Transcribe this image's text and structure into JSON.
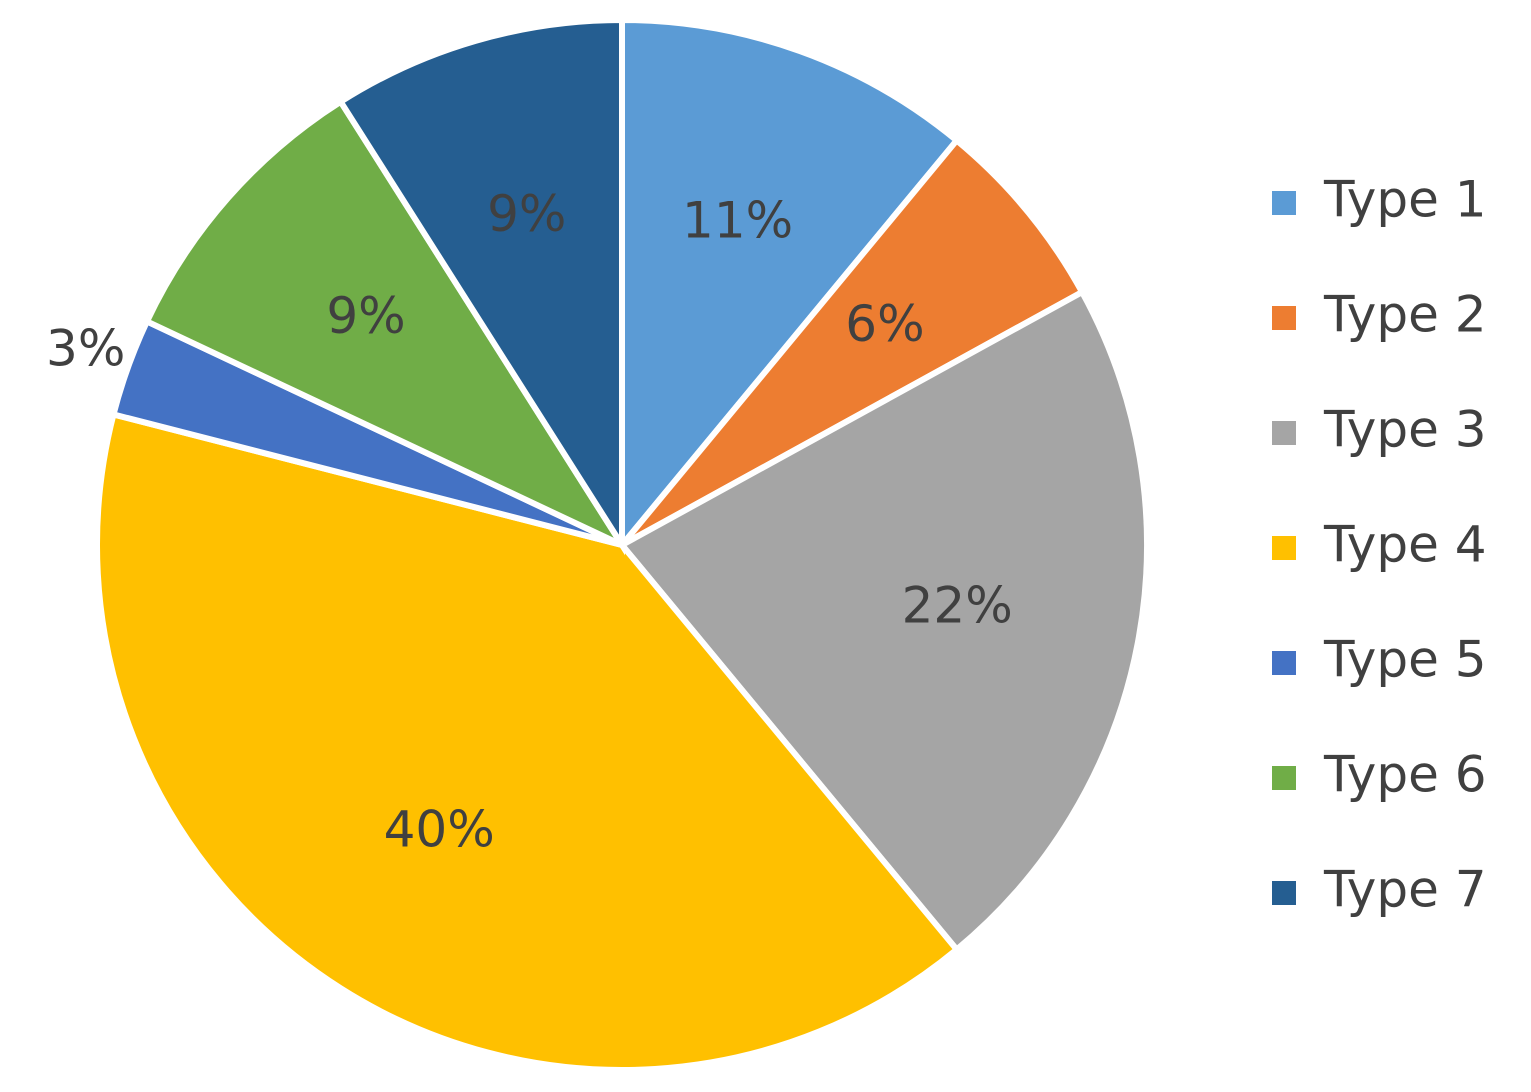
{
  "chart_data": {
    "type": "pie",
    "categories": [
      "Type 1",
      "Type 2",
      "Type 3",
      "Type 4",
      "Type 5",
      "Type 6",
      "Type 7"
    ],
    "values": [
      11,
      6,
      22,
      40,
      3,
      9,
      9
    ],
    "value_labels": [
      "11%",
      "6%",
      "22%",
      "40%",
      "3%",
      "9%",
      "9%"
    ],
    "colors": [
      "#5b9bd5",
      "#ed7d31",
      "#a5a5a5",
      "#ffc000",
      "#4472c4",
      "#70ad47",
      "#255e91"
    ],
    "legend": "right"
  }
}
